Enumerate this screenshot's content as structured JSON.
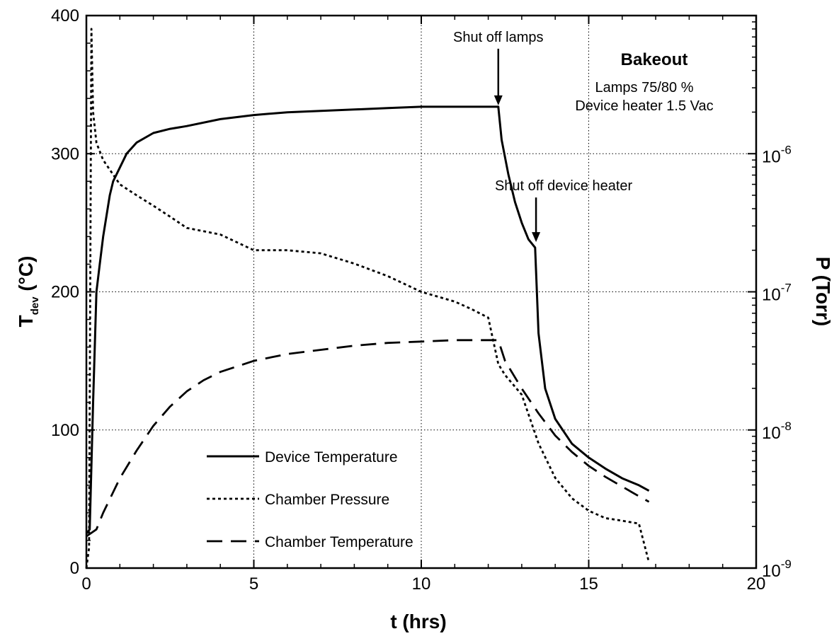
{
  "chart_data": {
    "type": "line",
    "title": "",
    "xlabel": "t (hrs)",
    "ylabel_left": {
      "main": "T",
      "subscript": "dev",
      "unit": " (°C)"
    },
    "ylabel_right": "P (Torr)",
    "xlim": [
      0,
      20
    ],
    "ylim_left": [
      0,
      400
    ],
    "ylim_right": [
      1e-09,
      1e-05
    ],
    "right_scale": "log",
    "grid": true,
    "legend_placement": "bottom-left",
    "x_ticks": [
      "0",
      "5",
      "10",
      "15",
      "20"
    ],
    "y_ticks_left": [
      "0",
      "100",
      "200",
      "300",
      "400"
    ],
    "y_ticks_right": [
      {
        "base": "10",
        "exp": "-9"
      },
      {
        "base": "10",
        "exp": "-8"
      },
      {
        "base": "10",
        "exp": "-7"
      },
      {
        "base": "10",
        "exp": "-6"
      }
    ],
    "series": [
      {
        "name": "Device Temperature",
        "axis": "left",
        "style": "solid",
        "x": [
          0,
          0.1,
          0.2,
          0.3,
          0.4,
          0.5,
          0.6,
          0.7,
          0.8,
          1.0,
          1.2,
          1.5,
          2.0,
          2.5,
          3.0,
          4.0,
          5.0,
          6.0,
          7.0,
          8.0,
          9.0,
          10.0,
          11.0,
          12.0,
          12.3,
          12.4,
          12.6,
          12.8,
          13.0,
          13.2,
          13.3,
          13.4,
          13.5,
          13.7,
          14.0,
          14.5,
          15.0,
          15.5,
          16.0,
          16.5,
          16.8
        ],
        "y": [
          25,
          28,
          120,
          200,
          220,
          240,
          255,
          270,
          280,
          290,
          300,
          308,
          315,
          318,
          320,
          325,
          328,
          330,
          331,
          332,
          333,
          334,
          334,
          334,
          334,
          310,
          285,
          265,
          250,
          238,
          235,
          232,
          170,
          130,
          108,
          90,
          80,
          72,
          65,
          60,
          56
        ]
      },
      {
        "name": "Chamber Pressure",
        "axis": "right",
        "style": "dotted",
        "x": [
          0,
          0.08,
          0.15,
          0.2,
          0.3,
          0.5,
          1.0,
          1.5,
          2.0,
          2.5,
          3.0,
          4.0,
          5.0,
          6.0,
          7.0,
          8.0,
          9.0,
          10.0,
          11.0,
          11.5,
          12.0,
          12.3,
          12.5,
          13.0,
          13.5,
          14.0,
          14.5,
          15.0,
          15.5,
          16.0,
          16.5,
          16.8
        ],
        "y": [
          1e-09,
          1.4e-09,
          8e-06,
          2e-06,
          1.2e-06,
          9e-07,
          6e-07,
          5e-07,
          4.2e-07,
          3.5e-07,
          2.9e-07,
          2.6e-07,
          2e-07,
          2e-07,
          1.9e-07,
          1.6e-07,
          1.3e-07,
          1e-07,
          8.5e-08,
          7.5e-08,
          6.5e-08,
          3e-08,
          2.5e-08,
          1.8e-08,
          8e-09,
          4.5e-09,
          3.2e-09,
          2.6e-09,
          2.3e-09,
          2.2e-09,
          2.1e-09,
          1.1e-09
        ]
      },
      {
        "name": "Chamber Temperature",
        "axis": "left",
        "style": "dashed",
        "x": [
          0,
          0.3,
          0.5,
          1.0,
          1.5,
          2.0,
          2.5,
          3.0,
          3.5,
          4.0,
          5.0,
          6.0,
          7.0,
          8.0,
          9.0,
          10.0,
          11.0,
          12.0,
          12.3,
          12.5,
          13.0,
          13.5,
          14.0,
          14.5,
          15.0,
          15.5,
          16.0,
          16.5,
          16.8
        ],
        "y": [
          23,
          28,
          40,
          65,
          85,
          103,
          117,
          128,
          136,
          142,
          150,
          155,
          158,
          161,
          163,
          164,
          165,
          165,
          165,
          150,
          130,
          112,
          96,
          84,
          74,
          66,
          59,
          52,
          48
        ]
      }
    ],
    "annotations": [
      {
        "text": "Shut off lamps",
        "x": 12.3,
        "y": 334
      },
      {
        "text": "Shut off device heater",
        "x": 13.3,
        "y": 235
      }
    ],
    "inset_text": {
      "title": "Bakeout",
      "line1": "Lamps 75/80 %",
      "line2": "Device heater 1.5 Vac"
    }
  }
}
